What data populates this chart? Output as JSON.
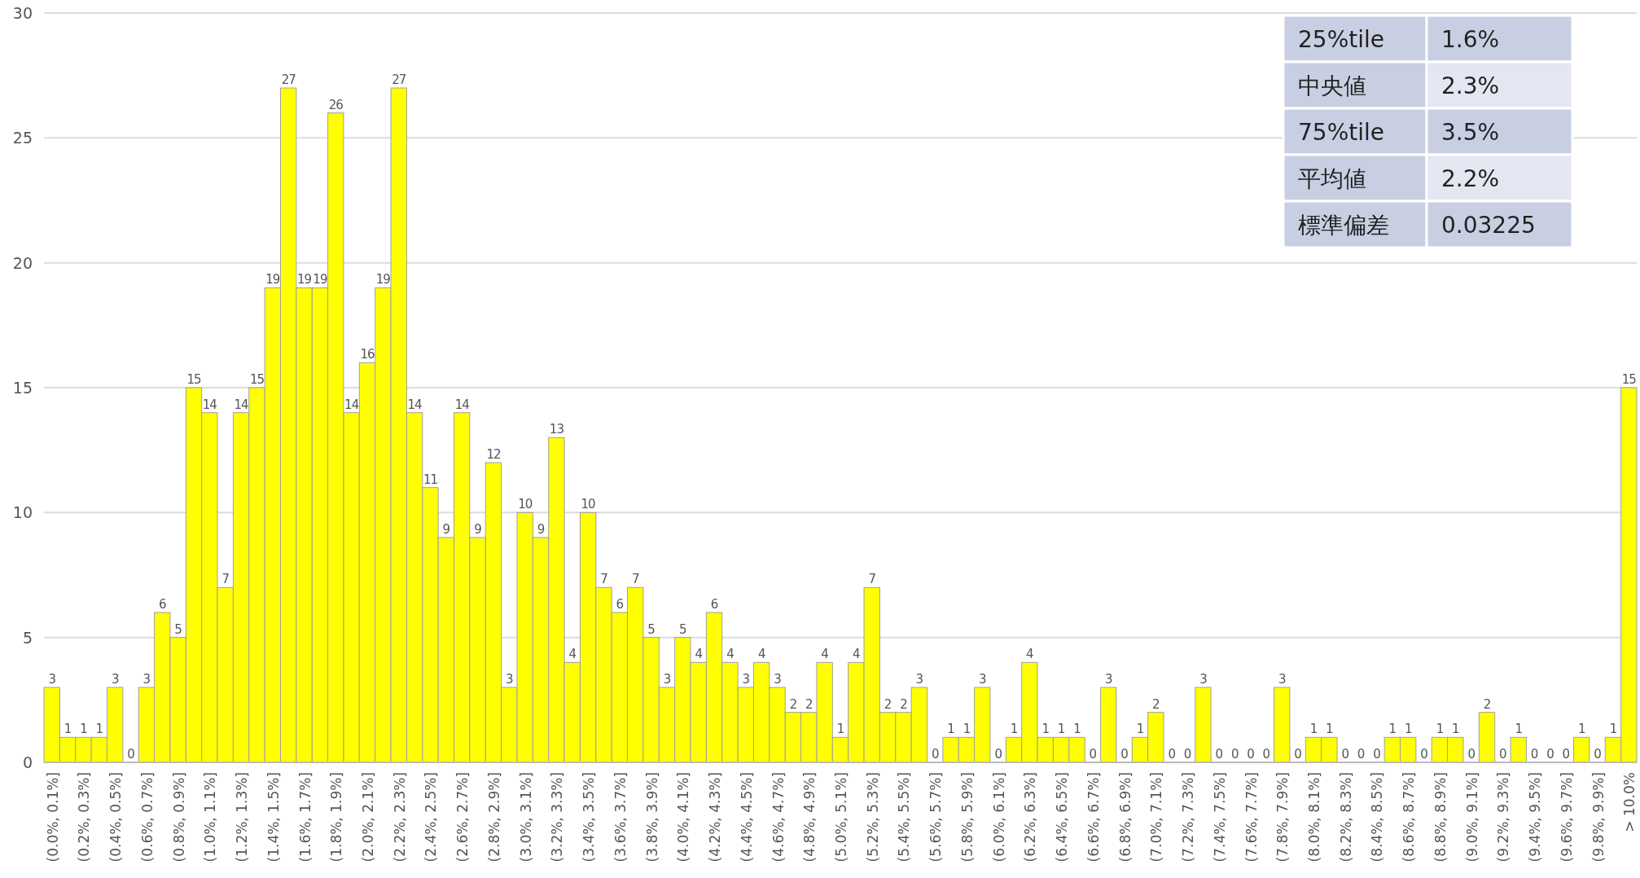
{
  "chart_data": {
    "type": "bar",
    "categories": [
      "(0.0%, 0.1%]",
      null,
      "(0.2%, 0.3%]",
      null,
      "(0.4%, 0.5%]",
      null,
      "(0.6%, 0.7%]",
      null,
      "(0.8%, 0.9%]",
      null,
      "(1.0%, 1.1%]",
      null,
      "(1.2%, 1.3%]",
      null,
      "(1.4%, 1.5%]",
      null,
      "(1.6%, 1.7%]",
      null,
      "(1.8%, 1.9%]",
      null,
      "(2.0%, 2.1%]",
      null,
      "(2.2%, 2.3%]",
      null,
      "(2.4%, 2.5%]",
      null,
      "(2.6%, 2.7%]",
      null,
      "(2.8%, 2.9%]",
      null,
      "(3.0%, 3.1%]",
      null,
      "(3.2%, 3.3%]",
      null,
      "(3.4%, 3.5%]",
      null,
      "(3.6%, 3.7%]",
      null,
      "(3.8%, 3.9%]",
      null,
      "(4.0%, 4.1%]",
      null,
      "(4.2%, 4.3%]",
      null,
      "(4.4%, 4.5%]",
      null,
      "(4.6%, 4.7%]",
      null,
      "(4.8%, 4.9%]",
      null,
      "(5.0%, 5.1%]",
      null,
      "(5.2%, 5.3%]",
      null,
      "(5.4%, 5.5%]",
      null,
      "(5.6%, 5.7%]",
      null,
      "(5.8%, 5.9%]",
      null,
      "(6.0%, 6.1%]",
      null,
      "(6.2%, 6.3%]",
      null,
      "(6.4%, 6.5%]",
      null,
      "(6.6%, 6.7%]",
      null,
      "(6.8%, 6.9%]",
      null,
      "(7.0%, 7.1%]",
      null,
      "(7.2%, 7.3%]",
      null,
      "(7.4%, 7.5%]",
      null,
      "(7.6%, 7.7%]",
      null,
      "(7.8%, 7.9%]",
      null,
      "(8.0%, 8.1%]",
      null,
      "(8.2%, 8.3%]",
      null,
      "(8.4%, 8.5%]",
      null,
      "(8.6%, 8.7%]",
      null,
      "(8.8%, 8.9%]",
      null,
      "(9.0%, 9.1%]",
      null,
      "(9.2%, 9.3%]",
      null,
      "(9.4%, 9.5%]",
      null,
      "(9.6%, 9.7%]",
      null,
      "(9.8%, 9.9%]",
      null,
      "> 10.0%"
    ],
    "values": [
      3,
      1,
      1,
      1,
      3,
      0,
      3,
      6,
      5,
      15,
      14,
      7,
      14,
      15,
      19,
      27,
      19,
      19,
      26,
      14,
      16,
      19,
      27,
      14,
      11,
      9,
      14,
      9,
      12,
      3,
      10,
      9,
      13,
      4,
      10,
      7,
      6,
      7,
      5,
      3,
      5,
      4,
      6,
      4,
      3,
      4,
      3,
      2,
      2,
      4,
      1,
      4,
      7,
      2,
      2,
      3,
      0,
      1,
      1,
      3,
      0,
      1,
      4,
      1,
      1,
      1,
      0,
      3,
      0,
      1,
      2,
      0,
      0,
      3,
      0,
      0,
      0,
      0,
      3,
      0,
      1,
      1,
      0,
      0,
      0,
      1,
      1,
      0,
      1,
      1,
      0,
      2,
      0,
      1,
      0,
      0,
      0,
      1,
      0,
      1,
      15
    ],
    "color": "#ffff00",
    "ylim": [
      0,
      30
    ],
    "yticks": [
      0,
      5,
      10,
      15,
      20,
      25,
      30
    ],
    "grid": "y",
    "data_labels": true,
    "annotations": [
      "25%tile",
      "1.6%",
      "中央値",
      "2.3%",
      "75%tile",
      "3.5%",
      "平均値",
      "2.2%",
      "標準偏差",
      "0.03225"
    ]
  }
}
